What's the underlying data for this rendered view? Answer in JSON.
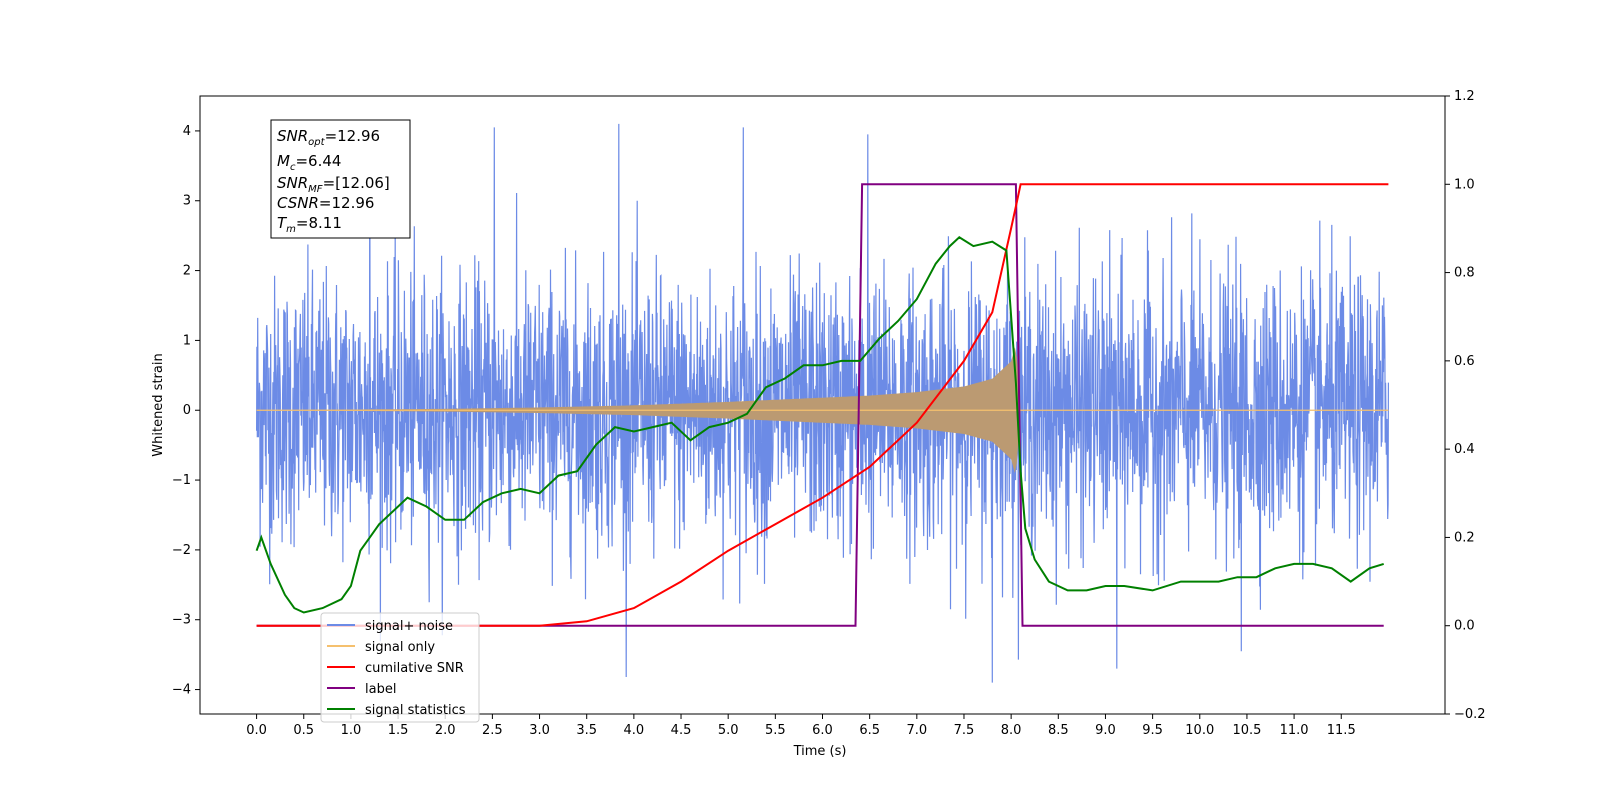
{
  "chart_data": {
    "type": "line",
    "title": "",
    "xlabel": "Time (s)",
    "ylabel": "Whitened strain",
    "xlim": [
      -0.6,
      12.6
    ],
    "ylim": [
      -4.35,
      4.5
    ],
    "y2lim": [
      -0.2,
      1.2
    ],
    "x_ticks": [
      "0.0",
      "0.5",
      "1.0",
      "1.5",
      "2.0",
      "2.5",
      "3.0",
      "3.5",
      "4.0",
      "4.5",
      "5.0",
      "5.5",
      "6.0",
      "6.5",
      "7.0",
      "7.5",
      "8.0",
      "8.5",
      "9.0",
      "9.5",
      "10.0",
      "10.5",
      "11.0",
      "11.5"
    ],
    "y_ticks": [
      "4",
      "3",
      "2",
      "1",
      "0",
      "−1",
      "−2",
      "−3",
      "−4"
    ],
    "y2_ticks": [
      "1.2",
      "1.0",
      "0.8",
      "0.6",
      "0.4",
      "0.2",
      "0.0",
      "−0.2"
    ],
    "grid": false,
    "legend_position": "lower-left",
    "colors": {
      "noise": "#6c8be6",
      "signal": "#f5c06e",
      "csnr": "#ff0000",
      "label": "#800080",
      "stat": "#008000",
      "overlap": "#bb9a72"
    },
    "annotation": {
      "snr_opt": {
        "sym": "SNR",
        "sub": "opt",
        "val": "=12.96"
      },
      "mc": {
        "sym": "M",
        "sub": "c",
        "val": "=6.44"
      },
      "snr_mf": {
        "sym": "SNR",
        "sub": "MF",
        "val": "=[12.06]"
      },
      "csnr": {
        "sym": "CSNR",
        "sub": "",
        "val": "=12.96"
      },
      "tm": {
        "sym": "T",
        "sub": "m",
        "val": "=8.11"
      }
    },
    "series": [
      {
        "name": "signal+ noise",
        "axis": "left",
        "x_range": [
          0.0,
          12.0
        ],
        "amplitude_std": 0.95,
        "peak_values": [
          4.1,
          4.05,
          4.1,
          4.05,
          3.95,
          -3.9,
          -3.7,
          -3.45
        ]
      },
      {
        "name": "signal only",
        "axis": "left",
        "envelope_x": [
          0.0,
          2.0,
          3.0,
          4.0,
          5.0,
          6.0,
          6.5,
          7.0,
          7.5,
          7.8,
          8.0,
          8.05,
          8.1,
          12.0
        ],
        "envelope_y": [
          0.0,
          0.02,
          0.04,
          0.07,
          0.12,
          0.18,
          0.21,
          0.26,
          0.34,
          0.45,
          0.7,
          0.95,
          0.0,
          0.0
        ]
      },
      {
        "name": "cumilative SNR",
        "axis": "right",
        "x": [
          0.0,
          3.0,
          3.5,
          4.0,
          4.5,
          5.0,
          5.5,
          6.0,
          6.5,
          7.0,
          7.5,
          7.8,
          8.0,
          8.05,
          8.1,
          12.0
        ],
        "y": [
          0.0,
          0.0,
          0.01,
          0.04,
          0.1,
          0.17,
          0.23,
          0.29,
          0.36,
          0.46,
          0.6,
          0.71,
          0.9,
          0.95,
          1.0,
          1.0
        ]
      },
      {
        "name": "label",
        "axis": "right",
        "x": [
          0.0,
          6.35,
          6.42,
          8.05,
          8.12,
          11.95
        ],
        "y": [
          0.0,
          0.0,
          1.0,
          1.0,
          0.0,
          0.0
        ]
      },
      {
        "name": "signal statistics",
        "axis": "right",
        "x": [
          0.0,
          0.05,
          0.15,
          0.3,
          0.4,
          0.5,
          0.7,
          0.9,
          1.0,
          1.1,
          1.2,
          1.3,
          1.4,
          1.6,
          1.8,
          2.0,
          2.2,
          2.4,
          2.6,
          2.8,
          3.0,
          3.2,
          3.4,
          3.6,
          3.8,
          4.0,
          4.2,
          4.4,
          4.6,
          4.8,
          5.0,
          5.2,
          5.4,
          5.6,
          5.8,
          6.0,
          6.2,
          6.4,
          6.6,
          6.8,
          7.0,
          7.2,
          7.35,
          7.45,
          7.6,
          7.8,
          7.95,
          8.05,
          8.1,
          8.15,
          8.25,
          8.4,
          8.6,
          8.8,
          9.0,
          9.2,
          9.5,
          9.8,
          10.0,
          10.2,
          10.4,
          10.6,
          10.8,
          11.0,
          11.2,
          11.4,
          11.6,
          11.8,
          11.95
        ],
        "y": [
          0.17,
          0.2,
          0.14,
          0.07,
          0.04,
          0.03,
          0.04,
          0.06,
          0.09,
          0.17,
          0.2,
          0.23,
          0.25,
          0.29,
          0.27,
          0.24,
          0.24,
          0.28,
          0.3,
          0.31,
          0.3,
          0.34,
          0.35,
          0.41,
          0.45,
          0.44,
          0.45,
          0.46,
          0.42,
          0.45,
          0.46,
          0.48,
          0.54,
          0.56,
          0.59,
          0.59,
          0.6,
          0.6,
          0.65,
          0.69,
          0.74,
          0.82,
          0.86,
          0.88,
          0.86,
          0.87,
          0.85,
          0.55,
          0.35,
          0.22,
          0.15,
          0.1,
          0.08,
          0.08,
          0.09,
          0.09,
          0.08,
          0.1,
          0.1,
          0.1,
          0.11,
          0.11,
          0.13,
          0.14,
          0.14,
          0.13,
          0.1,
          0.13,
          0.14
        ]
      }
    ]
  }
}
